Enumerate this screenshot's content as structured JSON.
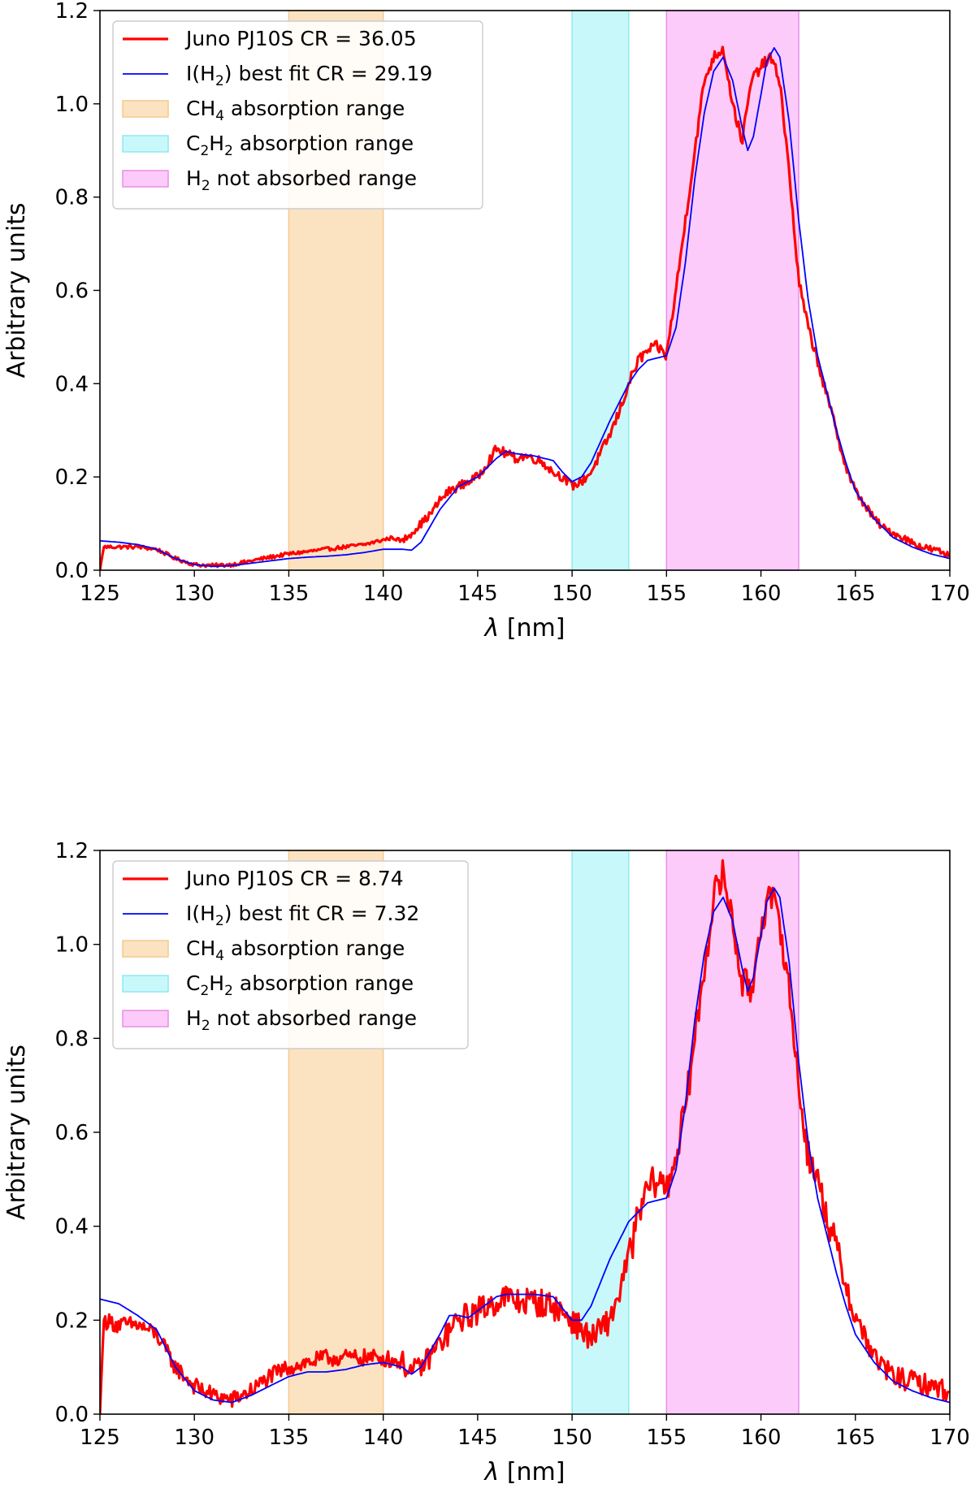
{
  "chart_data": [
    {
      "type": "line",
      "xlabel": "λ [nm]",
      "ylabel": "Arbitrary units",
      "xlim": [
        125,
        170
      ],
      "ylim": [
        0,
        1.2
      ],
      "xticks": [
        125,
        130,
        135,
        140,
        145,
        150,
        155,
        160,
        165,
        170
      ],
      "xtick_labels": [
        "125",
        "130",
        "135",
        "140",
        "145",
        "150",
        "155",
        "160",
        "165",
        "170"
      ],
      "yticks": [
        0.0,
        0.2,
        0.4,
        0.6,
        0.8,
        1.0,
        1.2
      ],
      "ytick_labels": [
        "0.0",
        "0.2",
        "0.4",
        "0.6",
        "0.8",
        "1.0",
        "1.2"
      ],
      "legend_position": "top-left",
      "bands": [
        {
          "x0": 135,
          "x1": 140,
          "color": "#fbe3c2",
          "edge": "#f5c98e",
          "label_main": "CH",
          "label_sub": "4",
          "label_rest": " absorption range"
        },
        {
          "x0": 150,
          "x1": 153,
          "color": "#c9f8fa",
          "edge": "#8ee9f0",
          "label_main": "C",
          "label_sub": "2",
          "label_main2": "H",
          "label_sub2": "2",
          "label_rest": " absorption range"
        },
        {
          "x0": 155,
          "x1": 162,
          "color": "#fccbfa",
          "edge": "#e88fe6",
          "label_main": "H",
          "label_sub": "2",
          "label_rest": " not absorbed range"
        }
      ],
      "series": [
        {
          "name": "Juno PJ10S CR = 36.05",
          "color": "#ff0000",
          "x": [
            125.0,
            125.2,
            126.0,
            127.0,
            128.0,
            129.0,
            130.0,
            131.0,
            132.0,
            133.0,
            134.0,
            135.0,
            136.0,
            137.0,
            138.0,
            139.0,
            140.0,
            140.5,
            141.0,
            141.5,
            142.0,
            142.5,
            143.0,
            143.5,
            144.0,
            144.5,
            145.0,
            145.5,
            146.0,
            146.5,
            147.0,
            147.5,
            148.0,
            148.5,
            149.0,
            149.5,
            150.0,
            150.5,
            151.0,
            151.5,
            152.0,
            152.5,
            153.0,
            153.5,
            154.0,
            154.5,
            155.0,
            155.5,
            156.0,
            156.5,
            157.0,
            157.5,
            158.0,
            158.5,
            159.0,
            159.5,
            160.0,
            160.5,
            161.0,
            161.5,
            162.0,
            162.5,
            163.0,
            163.5,
            164.0,
            164.5,
            165.0,
            165.5,
            166.0,
            166.5,
            167.0,
            167.5,
            168.0,
            168.5,
            169.0,
            169.5,
            170.0
          ],
          "y": [
            0.0,
            0.05,
            0.05,
            0.05,
            0.045,
            0.025,
            0.012,
            0.01,
            0.012,
            0.02,
            0.028,
            0.035,
            0.04,
            0.045,
            0.05,
            0.055,
            0.065,
            0.07,
            0.062,
            0.08,
            0.1,
            0.12,
            0.15,
            0.17,
            0.18,
            0.19,
            0.2,
            0.23,
            0.26,
            0.25,
            0.24,
            0.245,
            0.24,
            0.23,
            0.21,
            0.2,
            0.18,
            0.19,
            0.21,
            0.25,
            0.29,
            0.34,
            0.4,
            0.45,
            0.47,
            0.48,
            0.46,
            0.6,
            0.75,
            0.9,
            1.05,
            1.1,
            1.12,
            1.0,
            0.92,
            1.05,
            1.08,
            1.1,
            1.05,
            0.85,
            0.62,
            0.52,
            0.45,
            0.37,
            0.3,
            0.22,
            0.17,
            0.14,
            0.11,
            0.09,
            0.08,
            0.07,
            0.06,
            0.05,
            0.045,
            0.04,
            0.03
          ],
          "noise_before": 0.004,
          "noise_after": 0.012
        },
        {
          "name": "I(H2) best fit CR = 29.19",
          "color": "#0000ff",
          "x": [
            125.0,
            126.0,
            127.0,
            128.0,
            129.0,
            130.0,
            131.0,
            132.0,
            133.0,
            134.0,
            135.0,
            136.0,
            137.0,
            138.0,
            139.0,
            140.0,
            141.0,
            141.5,
            142.0,
            143.0,
            144.0,
            145.0,
            146.0,
            146.5,
            147.0,
            148.0,
            149.0,
            149.5,
            150.0,
            150.5,
            151.0,
            152.0,
            152.5,
            153.0,
            153.5,
            154.0,
            155.0,
            155.5,
            156.0,
            156.5,
            157.0,
            157.5,
            158.0,
            158.5,
            159.0,
            159.3,
            159.6,
            160.0,
            160.3,
            160.7,
            161.0,
            161.5,
            162.0,
            162.5,
            163.0,
            163.5,
            164.0,
            164.5,
            165.0,
            166.0,
            167.0,
            168.0,
            169.0,
            170.0
          ],
          "y": [
            0.063,
            0.06,
            0.055,
            0.045,
            0.025,
            0.012,
            0.008,
            0.01,
            0.015,
            0.02,
            0.025,
            0.028,
            0.03,
            0.033,
            0.038,
            0.045,
            0.045,
            0.043,
            0.06,
            0.13,
            0.18,
            0.2,
            0.24,
            0.255,
            0.25,
            0.245,
            0.235,
            0.21,
            0.19,
            0.2,
            0.23,
            0.32,
            0.36,
            0.4,
            0.43,
            0.45,
            0.46,
            0.52,
            0.66,
            0.84,
            0.98,
            1.07,
            1.1,
            1.05,
            0.95,
            0.9,
            0.93,
            1.02,
            1.09,
            1.12,
            1.1,
            0.96,
            0.75,
            0.58,
            0.46,
            0.38,
            0.3,
            0.23,
            0.17,
            0.11,
            0.07,
            0.05,
            0.035,
            0.025
          ],
          "noise_before": 0,
          "noise_after": 0
        }
      ],
      "legend": [
        {
          "type": "line",
          "text": "Juno PJ10S CR = 36.05",
          "color": "#ff0000"
        },
        {
          "type": "line",
          "text": "I(H2) best fit CR = 29.19",
          "color": "#0000ff"
        },
        {
          "type": "band",
          "band": 0
        },
        {
          "type": "band",
          "band": 1
        },
        {
          "type": "band",
          "band": 2
        }
      ]
    },
    {
      "type": "line",
      "xlabel": "λ [nm]",
      "ylabel": "Arbitrary units",
      "xlim": [
        125,
        170
      ],
      "ylim": [
        0,
        1.2
      ],
      "xticks": [
        125,
        130,
        135,
        140,
        145,
        150,
        155,
        160,
        165,
        170
      ],
      "xtick_labels": [
        "125",
        "130",
        "135",
        "140",
        "145",
        "150",
        "155",
        "160",
        "165",
        "170"
      ],
      "yticks": [
        0.0,
        0.2,
        0.4,
        0.6,
        0.8,
        1.0,
        1.2
      ],
      "ytick_labels": [
        "0.0",
        "0.2",
        "0.4",
        "0.6",
        "0.8",
        "1.0",
        "1.2"
      ],
      "legend_position": "top-left",
      "bands": [
        {
          "x0": 135,
          "x1": 140,
          "color": "#fbe3c2",
          "edge": "#f5c98e",
          "label_main": "CH",
          "label_sub": "4",
          "label_rest": " absorption range"
        },
        {
          "x0": 150,
          "x1": 153,
          "color": "#c9f8fa",
          "edge": "#8ee9f0",
          "label_main": "C",
          "label_sub": "2",
          "label_main2": "H",
          "label_sub2": "2",
          "label_rest": " absorption range"
        },
        {
          "x0": 155,
          "x1": 162,
          "color": "#fccbfa",
          "edge": "#e88fe6",
          "label_main": "H",
          "label_sub": "2",
          "label_rest": " not absorbed range"
        }
      ],
      "series": [
        {
          "name": "Juno PJ10S CR =  8.74",
          "color": "#ff0000",
          "x": [
            125.0,
            125.2,
            126.0,
            127.0,
            128.0,
            129.0,
            130.0,
            131.0,
            132.0,
            133.0,
            134.0,
            135.0,
            136.0,
            137.0,
            138.0,
            139.0,
            140.0,
            141.0,
            141.5,
            142.0,
            143.0,
            144.0,
            145.0,
            146.0,
            146.5,
            147.0,
            148.0,
            149.0,
            150.0,
            150.5,
            151.0,
            152.0,
            152.5,
            153.0,
            153.5,
            154.0,
            154.5,
            155.0,
            155.5,
            156.0,
            156.5,
            157.0,
            157.5,
            158.0,
            158.5,
            159.0,
            159.5,
            160.0,
            160.5,
            161.0,
            161.5,
            162.0,
            162.5,
            163.0,
            163.5,
            164.0,
            164.5,
            165.0,
            165.5,
            166.0,
            167.0,
            168.0,
            169.0,
            170.0
          ],
          "y": [
            0.0,
            0.2,
            0.19,
            0.19,
            0.17,
            0.1,
            0.06,
            0.04,
            0.03,
            0.05,
            0.08,
            0.1,
            0.11,
            0.12,
            0.12,
            0.12,
            0.12,
            0.11,
            0.09,
            0.1,
            0.15,
            0.2,
            0.22,
            0.24,
            0.25,
            0.24,
            0.24,
            0.23,
            0.2,
            0.18,
            0.16,
            0.2,
            0.26,
            0.33,
            0.42,
            0.48,
            0.5,
            0.48,
            0.55,
            0.65,
            0.8,
            0.95,
            1.1,
            1.15,
            1.05,
            0.92,
            0.9,
            1.05,
            1.1,
            1.05,
            0.9,
            0.7,
            0.55,
            0.5,
            0.42,
            0.35,
            0.28,
            0.2,
            0.17,
            0.12,
            0.08,
            0.07,
            0.06,
            0.05
          ],
          "noise_before": 0.018,
          "noise_after": 0.035
        },
        {
          "name": "I(H2) best fit CR =  7.32",
          "color": "#0000ff",
          "x": [
            125.0,
            126.0,
            127.0,
            128.0,
            129.0,
            130.0,
            131.0,
            132.0,
            133.0,
            134.0,
            135.0,
            136.0,
            137.0,
            138.0,
            139.0,
            140.0,
            141.0,
            141.5,
            142.0,
            143.0,
            143.5,
            144.0,
            144.5,
            145.0,
            146.0,
            146.5,
            147.0,
            148.0,
            149.0,
            149.5,
            150.0,
            150.5,
            151.0,
            152.0,
            153.0,
            154.0,
            155.0,
            155.5,
            156.0,
            156.5,
            157.0,
            157.5,
            158.0,
            158.5,
            159.0,
            159.3,
            159.6,
            160.0,
            160.3,
            160.7,
            161.0,
            161.5,
            162.0,
            162.5,
            163.0,
            163.5,
            164.0,
            164.5,
            165.0,
            166.0,
            167.0,
            168.0,
            169.0,
            170.0
          ],
          "y": [
            0.245,
            0.235,
            0.21,
            0.18,
            0.1,
            0.05,
            0.03,
            0.025,
            0.04,
            0.06,
            0.08,
            0.09,
            0.09,
            0.095,
            0.105,
            0.11,
            0.1,
            0.085,
            0.1,
            0.17,
            0.21,
            0.21,
            0.205,
            0.22,
            0.25,
            0.255,
            0.255,
            0.255,
            0.25,
            0.225,
            0.2,
            0.2,
            0.23,
            0.33,
            0.41,
            0.45,
            0.46,
            0.52,
            0.66,
            0.84,
            0.98,
            1.07,
            1.1,
            1.05,
            0.95,
            0.9,
            0.93,
            1.02,
            1.09,
            1.12,
            1.1,
            0.96,
            0.75,
            0.58,
            0.46,
            0.38,
            0.3,
            0.23,
            0.17,
            0.11,
            0.07,
            0.05,
            0.035,
            0.025
          ],
          "noise_before": 0,
          "noise_after": 0
        }
      ],
      "legend": [
        {
          "type": "line",
          "text": "Juno PJ10S CR =  8.74",
          "color": "#ff0000"
        },
        {
          "type": "line",
          "text": "I(H2) best fit CR =  7.32",
          "color": "#0000ff"
        },
        {
          "type": "band",
          "band": 0
        },
        {
          "type": "band",
          "band": 1
        },
        {
          "type": "band",
          "band": 2
        }
      ]
    }
  ]
}
